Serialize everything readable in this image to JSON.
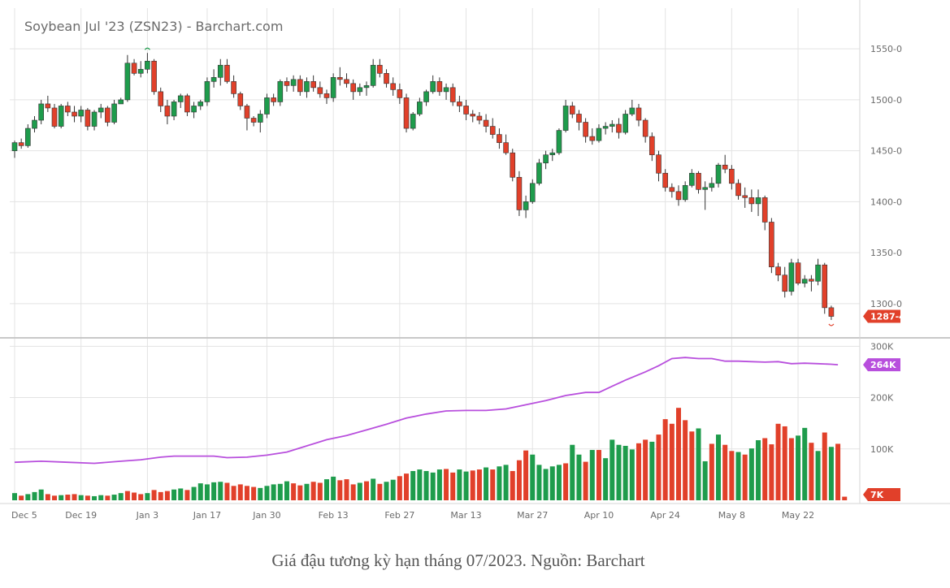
{
  "chart_data": {
    "type": "candlestick",
    "title": "Soybean Jul '23 (ZSN23) - Barchart.com",
    "caption": "Giá đậu tương kỳ hạn tháng 07/2023. Nguồn: Barchart",
    "colors": {
      "up": "#1e9c4c",
      "down": "#e1402a",
      "open_interest": "#b84fdd",
      "grid": "#e3e3e3"
    },
    "price_axis": {
      "ylim": [
        1268,
        1590
      ],
      "tick_labels": [
        "1550-0",
        "1500-0",
        "1450-0",
        "1400-0",
        "1350-0",
        "1300-0"
      ],
      "tick_values": [
        1550,
        1500,
        1450,
        1400,
        1350,
        1300
      ],
      "last_price_label": "1287-4",
      "last_price": 1287.5
    },
    "volume_axis": {
      "ylim": [
        0,
        310000
      ],
      "tick_labels": [
        "300K",
        "200K",
        "100K"
      ],
      "tick_values": [
        300000,
        200000,
        100000
      ],
      "oi_label": "264K",
      "oi_value": 264000,
      "volume_label": "7K",
      "volume_value": 7000
    },
    "x_ticks": [
      {
        "label": "Dec 5",
        "index": 0
      },
      {
        "label": "Dec 19",
        "index": 10
      },
      {
        "label": "Jan 3",
        "index": 20
      },
      {
        "label": "Jan 17",
        "index": 29
      },
      {
        "label": "Jan 30",
        "index": 38
      },
      {
        "label": "Feb 13",
        "index": 48
      },
      {
        "label": "Feb 27",
        "index": 58
      },
      {
        "label": "Mar 13",
        "index": 68
      },
      {
        "label": "Mar 27",
        "index": 78
      },
      {
        "label": "Apr 10",
        "index": 88
      },
      {
        "label": "Apr 24",
        "index": 98
      },
      {
        "label": "May 8",
        "index": 108
      },
      {
        "label": "May 22",
        "index": 118
      }
    ],
    "ohlc": [
      [
        1450,
        1460,
        1443,
        1458
      ],
      [
        1458,
        1462,
        1452,
        1455
      ],
      [
        1455,
        1476,
        1453,
        1472
      ],
      [
        1472,
        1484,
        1468,
        1480
      ],
      [
        1480,
        1500,
        1476,
        1496
      ],
      [
        1496,
        1504,
        1488,
        1492
      ],
      [
        1492,
        1496,
        1472,
        1474
      ],
      [
        1474,
        1496,
        1472,
        1494
      ],
      [
        1494,
        1498,
        1484,
        1488
      ],
      [
        1488,
        1494,
        1478,
        1484
      ],
      [
        1484,
        1494,
        1478,
        1490
      ],
      [
        1490,
        1492,
        1470,
        1474
      ],
      [
        1474,
        1490,
        1470,
        1488
      ],
      [
        1488,
        1496,
        1482,
        1492
      ],
      [
        1492,
        1494,
        1474,
        1478
      ],
      [
        1478,
        1500,
        1476,
        1496
      ],
      [
        1496,
        1502,
        1496,
        1500
      ],
      [
        1500,
        1544,
        1498,
        1536
      ],
      [
        1536,
        1540,
        1524,
        1526
      ],
      [
        1526,
        1538,
        1522,
        1530
      ],
      [
        1530,
        1546,
        1526,
        1538
      ],
      [
        1538,
        1540,
        1505,
        1508
      ],
      [
        1508,
        1512,
        1488,
        1494
      ],
      [
        1494,
        1500,
        1476,
        1484
      ],
      [
        1484,
        1500,
        1480,
        1498
      ],
      [
        1498,
        1506,
        1492,
        1504
      ],
      [
        1504,
        1506,
        1484,
        1488
      ],
      [
        1488,
        1498,
        1482,
        1494
      ],
      [
        1494,
        1500,
        1490,
        1498
      ],
      [
        1498,
        1522,
        1494,
        1518
      ],
      [
        1518,
        1530,
        1512,
        1522
      ],
      [
        1522,
        1540,
        1514,
        1534
      ],
      [
        1534,
        1540,
        1516,
        1518
      ],
      [
        1518,
        1524,
        1502,
        1506
      ],
      [
        1506,
        1508,
        1490,
        1494
      ],
      [
        1494,
        1496,
        1470,
        1482
      ],
      [
        1482,
        1484,
        1474,
        1478
      ],
      [
        1478,
        1490,
        1468,
        1486
      ],
      [
        1486,
        1506,
        1482,
        1502
      ],
      [
        1502,
        1506,
        1494,
        1498
      ],
      [
        1498,
        1520,
        1494,
        1518
      ],
      [
        1518,
        1522,
        1508,
        1514
      ],
      [
        1514,
        1524,
        1508,
        1520
      ],
      [
        1520,
        1524,
        1504,
        1508
      ],
      [
        1508,
        1522,
        1502,
        1518
      ],
      [
        1518,
        1524,
        1508,
        1512
      ],
      [
        1512,
        1518,
        1502,
        1506
      ],
      [
        1506,
        1510,
        1496,
        1502
      ],
      [
        1502,
        1526,
        1498,
        1522
      ],
      [
        1522,
        1532,
        1514,
        1520
      ],
      [
        1520,
        1526,
        1512,
        1516
      ],
      [
        1516,
        1520,
        1500,
        1508
      ],
      [
        1508,
        1516,
        1504,
        1512
      ],
      [
        1512,
        1518,
        1504,
        1514
      ],
      [
        1514,
        1540,
        1512,
        1534
      ],
      [
        1534,
        1540,
        1522,
        1526
      ],
      [
        1526,
        1530,
        1512,
        1516
      ],
      [
        1516,
        1522,
        1504,
        1510
      ],
      [
        1510,
        1516,
        1496,
        1502
      ],
      [
        1502,
        1506,
        1468,
        1472
      ],
      [
        1472,
        1488,
        1470,
        1486
      ],
      [
        1486,
        1502,
        1484,
        1498
      ],
      [
        1498,
        1510,
        1494,
        1508
      ],
      [
        1508,
        1524,
        1506,
        1518
      ],
      [
        1518,
        1522,
        1504,
        1508
      ],
      [
        1508,
        1516,
        1500,
        1512
      ],
      [
        1512,
        1516,
        1494,
        1498
      ],
      [
        1498,
        1504,
        1488,
        1494
      ],
      [
        1494,
        1500,
        1480,
        1486
      ],
      [
        1486,
        1490,
        1478,
        1484
      ],
      [
        1484,
        1488,
        1476,
        1480
      ],
      [
        1480,
        1486,
        1468,
        1474
      ],
      [
        1474,
        1482,
        1462,
        1466
      ],
      [
        1466,
        1472,
        1452,
        1458
      ],
      [
        1458,
        1466,
        1446,
        1448
      ],
      [
        1448,
        1452,
        1420,
        1424
      ],
      [
        1424,
        1430,
        1386,
        1392
      ],
      [
        1392,
        1406,
        1384,
        1400
      ],
      [
        1400,
        1422,
        1398,
        1418
      ],
      [
        1418,
        1442,
        1416,
        1438
      ],
      [
        1438,
        1450,
        1432,
        1446
      ],
      [
        1446,
        1452,
        1440,
        1448
      ],
      [
        1448,
        1472,
        1446,
        1470
      ],
      [
        1470,
        1500,
        1468,
        1494
      ],
      [
        1494,
        1498,
        1482,
        1486
      ],
      [
        1486,
        1490,
        1470,
        1478
      ],
      [
        1478,
        1482,
        1458,
        1464
      ],
      [
        1464,
        1472,
        1456,
        1460
      ],
      [
        1460,
        1476,
        1458,
        1472
      ],
      [
        1472,
        1478,
        1466,
        1474
      ],
      [
        1474,
        1480,
        1468,
        1476
      ],
      [
        1476,
        1482,
        1462,
        1468
      ],
      [
        1468,
        1490,
        1466,
        1486
      ],
      [
        1486,
        1500,
        1484,
        1492
      ],
      [
        1492,
        1496,
        1474,
        1480
      ],
      [
        1480,
        1482,
        1458,
        1464
      ],
      [
        1464,
        1468,
        1440,
        1446
      ],
      [
        1446,
        1450,
        1420,
        1428
      ],
      [
        1428,
        1432,
        1410,
        1414
      ],
      [
        1414,
        1418,
        1404,
        1410
      ],
      [
        1410,
        1416,
        1396,
        1402
      ],
      [
        1402,
        1420,
        1400,
        1416
      ],
      [
        1416,
        1432,
        1414,
        1428
      ],
      [
        1428,
        1430,
        1408,
        1412
      ],
      [
        1412,
        1420,
        1392,
        1414
      ],
      [
        1414,
        1424,
        1410,
        1418
      ],
      [
        1418,
        1438,
        1414,
        1436
      ],
      [
        1436,
        1446,
        1428,
        1432
      ],
      [
        1432,
        1436,
        1412,
        1418
      ],
      [
        1418,
        1422,
        1402,
        1406
      ],
      [
        1406,
        1414,
        1394,
        1404
      ],
      [
        1404,
        1412,
        1390,
        1398
      ],
      [
        1398,
        1412,
        1386,
        1404
      ],
      [
        1404,
        1406,
        1372,
        1380
      ],
      [
        1380,
        1384,
        1330,
        1336
      ],
      [
        1336,
        1340,
        1322,
        1328
      ],
      [
        1328,
        1336,
        1306,
        1312
      ],
      [
        1312,
        1344,
        1308,
        1340
      ],
      [
        1340,
        1344,
        1318,
        1320
      ],
      [
        1320,
        1328,
        1316,
        1324
      ],
      [
        1324,
        1328,
        1312,
        1322
      ],
      [
        1322,
        1344,
        1318,
        1338
      ],
      [
        1338,
        1340,
        1290,
        1296
      ],
      [
        1296,
        1298,
        1284,
        1287.5
      ]
    ],
    "volume": [
      [
        14000,
        "up"
      ],
      [
        9000,
        "down"
      ],
      [
        12000,
        "up"
      ],
      [
        16000,
        "up"
      ],
      [
        21000,
        "up"
      ],
      [
        12000,
        "down"
      ],
      [
        9000,
        "down"
      ],
      [
        10000,
        "up"
      ],
      [
        11000,
        "down"
      ],
      [
        12000,
        "down"
      ],
      [
        10000,
        "up"
      ],
      [
        9000,
        "down"
      ],
      [
        8000,
        "up"
      ],
      [
        10000,
        "up"
      ],
      [
        9000,
        "down"
      ],
      [
        11000,
        "up"
      ],
      [
        14000,
        "up"
      ],
      [
        18000,
        "down"
      ],
      [
        15000,
        "down"
      ],
      [
        12000,
        "down"
      ],
      [
        14000,
        "up"
      ],
      [
        20000,
        "down"
      ],
      [
        16000,
        "down"
      ],
      [
        18000,
        "down"
      ],
      [
        21000,
        "up"
      ],
      [
        23000,
        "up"
      ],
      [
        20000,
        "down"
      ],
      [
        26000,
        "up"
      ],
      [
        33000,
        "up"
      ],
      [
        31000,
        "up"
      ],
      [
        35000,
        "up"
      ],
      [
        36000,
        "up"
      ],
      [
        34000,
        "down"
      ],
      [
        28000,
        "down"
      ],
      [
        31000,
        "down"
      ],
      [
        28000,
        "down"
      ],
      [
        26000,
        "down"
      ],
      [
        24000,
        "up"
      ],
      [
        28000,
        "up"
      ],
      [
        31000,
        "up"
      ],
      [
        32000,
        "up"
      ],
      [
        37000,
        "up"
      ],
      [
        33000,
        "down"
      ],
      [
        29000,
        "down"
      ],
      [
        32000,
        "up"
      ],
      [
        36000,
        "down"
      ],
      [
        34000,
        "down"
      ],
      [
        41000,
        "up"
      ],
      [
        46000,
        "up"
      ],
      [
        39000,
        "down"
      ],
      [
        41000,
        "down"
      ],
      [
        31000,
        "down"
      ],
      [
        34000,
        "up"
      ],
      [
        37000,
        "down"
      ],
      [
        42000,
        "up"
      ],
      [
        32000,
        "down"
      ],
      [
        36000,
        "up"
      ],
      [
        40000,
        "up"
      ],
      [
        47000,
        "down"
      ],
      [
        52000,
        "down"
      ],
      [
        57000,
        "up"
      ],
      [
        60000,
        "up"
      ],
      [
        57000,
        "up"
      ],
      [
        54000,
        "up"
      ],
      [
        60000,
        "up"
      ],
      [
        61000,
        "down"
      ],
      [
        54000,
        "down"
      ],
      [
        60000,
        "up"
      ],
      [
        56000,
        "up"
      ],
      [
        58000,
        "down"
      ],
      [
        60000,
        "down"
      ],
      [
        64000,
        "up"
      ],
      [
        60000,
        "down"
      ],
      [
        66000,
        "up"
      ],
      [
        69000,
        "up"
      ],
      [
        57000,
        "down"
      ],
      [
        78000,
        "down"
      ],
      [
        97000,
        "down"
      ],
      [
        89000,
        "up"
      ],
      [
        69000,
        "up"
      ],
      [
        61000,
        "up"
      ],
      [
        66000,
        "up"
      ],
      [
        69000,
        "up"
      ],
      [
        72000,
        "down"
      ],
      [
        108000,
        "up"
      ],
      [
        89000,
        "up"
      ],
      [
        75000,
        "down"
      ],
      [
        98000,
        "up"
      ],
      [
        98000,
        "down"
      ],
      [
        82000,
        "up"
      ],
      [
        118000,
        "up"
      ],
      [
        108000,
        "up"
      ],
      [
        106000,
        "up"
      ],
      [
        99000,
        "up"
      ],
      [
        111000,
        "down"
      ],
      [
        118000,
        "down"
      ],
      [
        114000,
        "up"
      ],
      [
        128000,
        "down"
      ],
      [
        158000,
        "down"
      ],
      [
        149000,
        "down"
      ],
      [
        180000,
        "down"
      ],
      [
        156000,
        "down"
      ],
      [
        134000,
        "down"
      ],
      [
        140000,
        "up"
      ],
      [
        76000,
        "up"
      ],
      [
        110000,
        "down"
      ],
      [
        128000,
        "up"
      ],
      [
        108000,
        "down"
      ],
      [
        96000,
        "down"
      ],
      [
        94000,
        "up"
      ],
      [
        89000,
        "down"
      ],
      [
        101000,
        "up"
      ],
      [
        117000,
        "up"
      ],
      [
        121000,
        "down"
      ],
      [
        109000,
        "down"
      ],
      [
        149000,
        "down"
      ],
      [
        144000,
        "down"
      ],
      [
        121000,
        "down"
      ],
      [
        126000,
        "up"
      ],
      [
        141000,
        "up"
      ],
      [
        112000,
        "down"
      ],
      [
        96000,
        "up"
      ],
      [
        132000,
        "down"
      ],
      [
        104000,
        "up"
      ],
      [
        110000,
        "down"
      ],
      [
        7000,
        "down"
      ]
    ],
    "open_interest": [
      [
        0,
        74000
      ],
      [
        4,
        76000
      ],
      [
        8,
        74000
      ],
      [
        12,
        72000
      ],
      [
        16,
        76000
      ],
      [
        19,
        79000
      ],
      [
        22,
        84000
      ],
      [
        24,
        86000
      ],
      [
        27,
        86000
      ],
      [
        30,
        86000
      ],
      [
        32,
        83000
      ],
      [
        35,
        84000
      ],
      [
        38,
        88000
      ],
      [
        41,
        94000
      ],
      [
        44,
        106000
      ],
      [
        47,
        118000
      ],
      [
        50,
        126000
      ],
      [
        53,
        137000
      ],
      [
        56,
        148000
      ],
      [
        59,
        160000
      ],
      [
        62,
        168000
      ],
      [
        65,
        174000
      ],
      [
        68,
        175000
      ],
      [
        71,
        175000
      ],
      [
        74,
        178000
      ],
      [
        77,
        186000
      ],
      [
        80,
        194000
      ],
      [
        83,
        204000
      ],
      [
        86,
        210000
      ],
      [
        88,
        210000
      ],
      [
        90,
        222000
      ],
      [
        92,
        234000
      ],
      [
        95,
        250000
      ],
      [
        97,
        262000
      ],
      [
        99,
        276000
      ],
      [
        101,
        278000
      ],
      [
        103,
        276000
      ],
      [
        105,
        276000
      ],
      [
        107,
        271000
      ],
      [
        109,
        271000
      ],
      [
        111,
        270000
      ],
      [
        113,
        269000
      ],
      [
        115,
        270000
      ],
      [
        117,
        266000
      ],
      [
        119,
        267000
      ],
      [
        121,
        266000
      ],
      [
        123,
        265000
      ],
      [
        124,
        264000
      ]
    ]
  }
}
